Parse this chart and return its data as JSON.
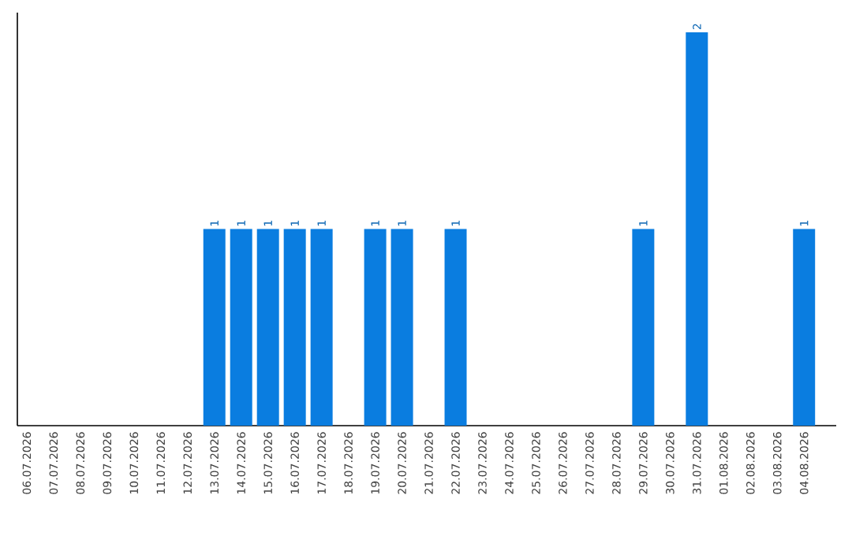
{
  "chart_data": {
    "type": "bar",
    "categories": [
      "06.07.2026",
      "07.07.2026",
      "08.07.2026",
      "09.07.2026",
      "10.07.2026",
      "11.07.2026",
      "12.07.2026",
      "13.07.2026",
      "14.07.2026",
      "15.07.2026",
      "16.07.2026",
      "17.07.2026",
      "18.07.2026",
      "19.07.2026",
      "20.07.2026",
      "21.07.2026",
      "22.07.2026",
      "23.07.2026",
      "24.07.2026",
      "25.07.2026",
      "26.07.2026",
      "27.07.2026",
      "28.07.2026",
      "29.07.2026",
      "30.07.2026",
      "31.07.2026",
      "01.08.2026",
      "02.08.2026",
      "03.08.2026",
      "04.08.2026"
    ],
    "values": [
      0,
      0,
      0,
      0,
      0,
      0,
      0,
      1,
      1,
      1,
      1,
      1,
      0,
      1,
      1,
      0,
      1,
      0,
      0,
      0,
      0,
      0,
      0,
      1,
      0,
      2,
      0,
      0,
      0,
      1
    ],
    "value_labels": [
      null,
      null,
      null,
      null,
      null,
      null,
      null,
      "1",
      "1",
      "1",
      "1",
      "1",
      null,
      "1",
      "1",
      null,
      "1",
      null,
      null,
      null,
      null,
      null,
      null,
      "1",
      null,
      "2",
      null,
      null,
      null,
      "1"
    ],
    "color": "#0a7de0",
    "ylim": [
      0,
      2.1
    ],
    "tick_labels": "x"
  }
}
